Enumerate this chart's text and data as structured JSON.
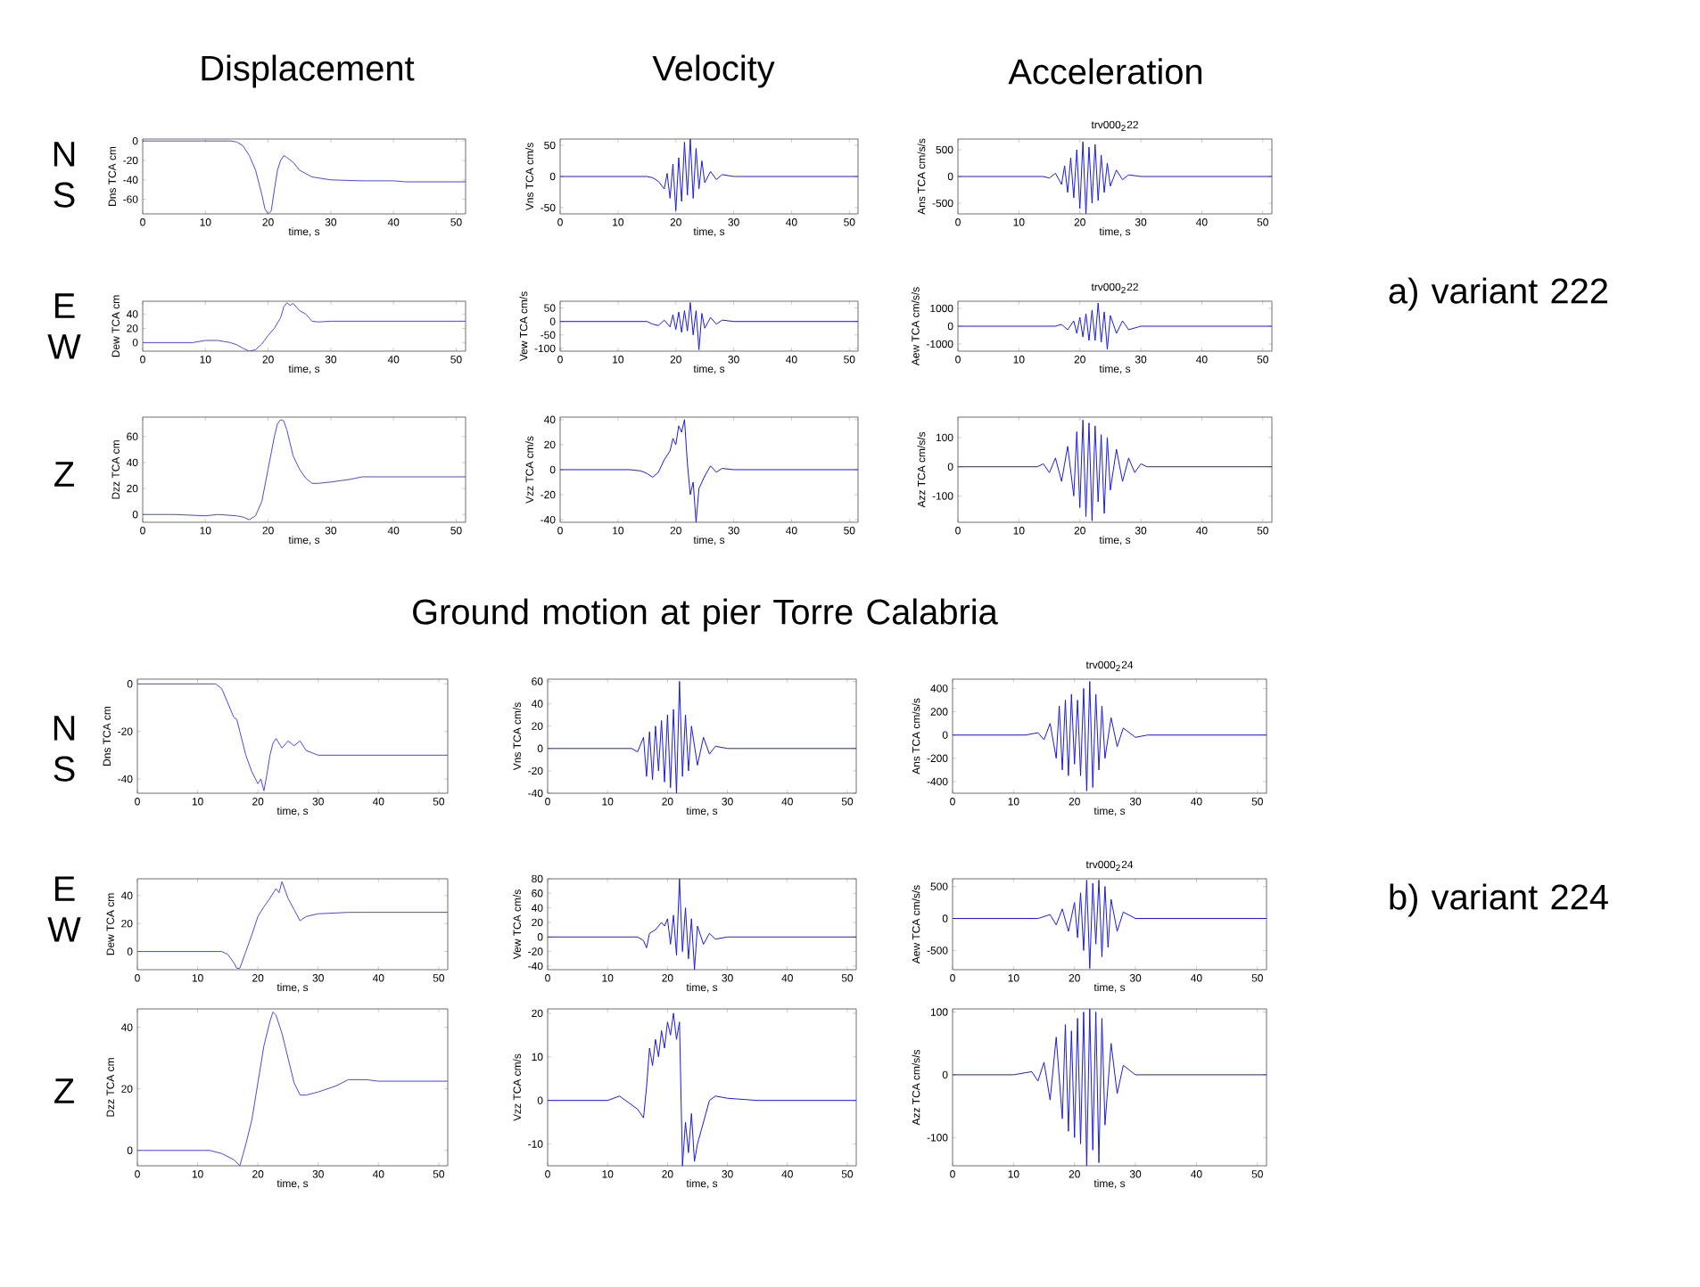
{
  "chart_data": [
    {
      "type": "line",
      "xlabel": "time, s",
      "ylabel": "Dns TCA cm",
      "color": "#4a4ad8",
      "xlim": [
        0,
        51.5
      ],
      "xticks": [
        0,
        10,
        20,
        30,
        40,
        50
      ],
      "ylim": [
        -75,
        2
      ],
      "yticks": [
        -60,
        -40,
        -20,
        0
      ],
      "x": [
        0,
        10,
        14,
        15,
        16,
        17,
        18,
        19,
        19.5,
        20,
        20.5,
        21,
        21.5,
        22,
        22.5,
        23,
        24,
        25,
        27,
        30,
        35,
        40,
        42,
        45,
        50,
        51.5
      ],
      "values": [
        0,
        0,
        0,
        -1,
        -5,
        -15,
        -30,
        -55,
        -70,
        -75,
        -72,
        -50,
        -30,
        -20,
        -15,
        -17,
        -22,
        -30,
        -37,
        -40,
        -41,
        -41,
        -42,
        -42,
        -42,
        -42
      ]
    },
    {
      "type": "line",
      "xlabel": "time, s",
      "ylabel": "Vns TCA cm/s",
      "color": "#1a1ae0",
      "xlim": [
        0,
        51.5
      ],
      "xticks": [
        0,
        10,
        20,
        30,
        40,
        50
      ],
      "ylim": [
        -60,
        60
      ],
      "yticks": [
        -50,
        0,
        50
      ],
      "x": [
        0,
        15,
        16,
        17,
        18,
        18.5,
        19,
        19.5,
        20,
        20.5,
        21,
        21.5,
        22,
        22.5,
        23,
        23.5,
        24,
        24.5,
        25,
        26,
        27,
        28,
        30,
        35,
        51.5
      ],
      "values": [
        0,
        0,
        -2,
        -8,
        -20,
        5,
        -35,
        20,
        -55,
        30,
        -40,
        55,
        -30,
        60,
        -35,
        45,
        -20,
        25,
        -10,
        8,
        -5,
        3,
        0,
        0,
        0
      ]
    },
    {
      "type": "line",
      "title": "trv000$_{2}$22",
      "xlabel": "time, s",
      "ylabel": "Ans TCA cm/s/s",
      "color": "#1a1ae0",
      "xlim": [
        0,
        51.5
      ],
      "xticks": [
        0,
        10,
        20,
        30,
        40,
        50
      ],
      "ylim": [
        -700,
        700
      ],
      "yticks": [
        -500,
        0,
        500
      ],
      "x": [
        0,
        14,
        15,
        16,
        17,
        17.5,
        18,
        18.5,
        19,
        19.5,
        20,
        20.5,
        21,
        21.5,
        22,
        22.5,
        23,
        23.5,
        24,
        24.5,
        25,
        26,
        27,
        28,
        30,
        51.5
      ],
      "values": [
        0,
        0,
        -30,
        60,
        -150,
        200,
        -300,
        350,
        -400,
        500,
        -600,
        650,
        -700,
        550,
        -500,
        600,
        -450,
        400,
        -300,
        250,
        -180,
        120,
        -60,
        30,
        0,
        0
      ]
    },
    {
      "type": "line",
      "xlabel": "time, s",
      "ylabel": "Dew TCA cm",
      "color": "#4a4ad8",
      "xlim": [
        0,
        51.5
      ],
      "xticks": [
        0,
        10,
        20,
        30,
        40,
        50
      ],
      "ylim": [
        -12,
        58
      ],
      "yticks": [
        0,
        20,
        40
      ],
      "x": [
        0,
        8,
        10,
        12,
        14,
        15,
        16,
        17,
        18,
        19,
        20,
        21,
        22,
        22.5,
        23,
        23.5,
        24,
        25,
        26,
        27,
        28,
        30,
        40,
        51.5
      ],
      "values": [
        0,
        0,
        3,
        3,
        0,
        -3,
        -8,
        -12,
        -10,
        -2,
        10,
        20,
        35,
        50,
        56,
        52,
        55,
        45,
        40,
        30,
        29,
        30,
        30,
        30
      ]
    },
    {
      "type": "line",
      "xlabel": "time, s",
      "ylabel": "Vew TCA cm/s",
      "color": "#1a1ae0",
      "xlim": [
        0,
        51.5
      ],
      "xticks": [
        0,
        10,
        20,
        30,
        40,
        50
      ],
      "ylim": [
        -110,
        75
      ],
      "yticks": [
        -100,
        -50,
        0,
        50
      ],
      "x": [
        0,
        15,
        16,
        17,
        18,
        19,
        19.5,
        20,
        20.5,
        21,
        21.5,
        22,
        22.5,
        23,
        23.5,
        24,
        24.5,
        25,
        26,
        27,
        28,
        30,
        51.5
      ],
      "values": [
        0,
        0,
        -10,
        -15,
        5,
        -20,
        25,
        -30,
        35,
        -40,
        40,
        -35,
        70,
        -50,
        40,
        -105,
        30,
        -25,
        15,
        -10,
        5,
        0,
        0
      ]
    },
    {
      "type": "line",
      "title": "trv000$_{2}$22",
      "xlabel": "time, s",
      "ylabel": "Aew TCA cm/s/s",
      "color": "#1a1ae0",
      "xlim": [
        0,
        51.5
      ],
      "xticks": [
        0,
        10,
        20,
        30,
        40,
        50
      ],
      "ylim": [
        -1400,
        1400
      ],
      "yticks": [
        -1000,
        0,
        1000
      ],
      "x": [
        0,
        16,
        17,
        18,
        19,
        19.5,
        20,
        20.5,
        21,
        21.5,
        22,
        22.5,
        23,
        23.5,
        24,
        24.5,
        25,
        26,
        27,
        28,
        30,
        51.5
      ],
      "values": [
        0,
        0,
        100,
        -200,
        300,
        -400,
        500,
        -600,
        700,
        -800,
        900,
        -800,
        1300,
        -900,
        800,
        -1300,
        600,
        -400,
        300,
        -200,
        0,
        0
      ]
    },
    {
      "type": "line",
      "xlabel": "time, s",
      "ylabel": "Dzz TCA cm",
      "color": "#4a4ad8",
      "xlim": [
        0,
        51.5
      ],
      "xticks": [
        0,
        10,
        20,
        30,
        40,
        50
      ],
      "ylim": [
        -6,
        75
      ],
      "yticks": [
        0,
        20,
        40,
        60
      ],
      "x": [
        0,
        5,
        10,
        12,
        15,
        16,
        17,
        18,
        19,
        20,
        21,
        21.5,
        22,
        22.5,
        23,
        24,
        25,
        26,
        27,
        28,
        30,
        33,
        35,
        40,
        51.5
      ],
      "values": [
        0,
        0,
        -1,
        0,
        -1,
        -2,
        -4,
        -1,
        10,
        35,
        60,
        70,
        73,
        72,
        65,
        45,
        35,
        28,
        24,
        24,
        25,
        27,
        29,
        29,
        29
      ]
    },
    {
      "type": "line",
      "xlabel": "time, s",
      "ylabel": "Vzz TCA cm/s",
      "color": "#1a1ae0",
      "xlim": [
        0,
        51.5
      ],
      "xticks": [
        0,
        10,
        20,
        30,
        40,
        50
      ],
      "ylim": [
        -42,
        42
      ],
      "yticks": [
        -40,
        -20,
        0,
        20,
        40
      ],
      "x": [
        0,
        12,
        14,
        15,
        16,
        17,
        18,
        19,
        19.5,
        20,
        20.5,
        21,
        21.5,
        22,
        22.5,
        23,
        23.5,
        24,
        25,
        26,
        27,
        28,
        30,
        51.5
      ],
      "values": [
        0,
        0,
        -1,
        -3,
        -6,
        -2,
        8,
        15,
        25,
        20,
        35,
        30,
        40,
        5,
        -20,
        -10,
        -42,
        -15,
        -5,
        3,
        -2,
        1,
        0,
        0
      ]
    },
    {
      "type": "line",
      "xlabel": "time, s",
      "ylabel": "Azz TCA cm/s/s",
      "color": "#1a1ae0",
      "xlim": [
        0,
        51.5
      ],
      "xticks": [
        0,
        10,
        20,
        30,
        40,
        50
      ],
      "ylim": [
        -190,
        170
      ],
      "yticks": [
        -100,
        0,
        100
      ],
      "x": [
        0,
        13,
        14,
        15,
        16,
        17,
        18,
        19,
        19.5,
        20,
        20.5,
        21,
        21.5,
        22,
        22.5,
        23,
        23.5,
        24,
        24.5,
        25,
        26,
        27,
        28,
        29,
        30,
        31,
        51.5
      ],
      "values": [
        0,
        0,
        10,
        -20,
        30,
        -50,
        70,
        -100,
        120,
        -140,
        160,
        -170,
        150,
        -185,
        140,
        -120,
        110,
        -160,
        100,
        -80,
        60,
        -50,
        30,
        -20,
        10,
        0,
        0
      ]
    },
    {
      "type": "line",
      "xlabel": "time, s",
      "ylabel": "Dns TCA cm",
      "color": "#4a4ad8",
      "xlim": [
        0,
        51.5
      ],
      "xticks": [
        0,
        10,
        20,
        30,
        40,
        50
      ],
      "ylim": [
        -46,
        2
      ],
      "yticks": [
        -40,
        -20,
        0
      ],
      "x": [
        0,
        10,
        13,
        14,
        15,
        16,
        16.5,
        17,
        18,
        19,
        20,
        20.5,
        21,
        21.5,
        22,
        22.5,
        23,
        24,
        25,
        26,
        27,
        28,
        30,
        35,
        40,
        51.5
      ],
      "values": [
        0,
        0,
        0,
        -2,
        -8,
        -14,
        -15,
        -20,
        -30,
        -37,
        -42,
        -40,
        -45,
        -38,
        -30,
        -25,
        -23,
        -27,
        -24,
        -26,
        -24,
        -28,
        -30,
        -30,
        -30,
        -30
      ]
    },
    {
      "type": "line",
      "xlabel": "time, s",
      "ylabel": "Vns TCA cm/s",
      "color": "#1a1ae0",
      "xlim": [
        0,
        51.5
      ],
      "xticks": [
        0,
        10,
        20,
        30,
        40,
        50
      ],
      "ylim": [
        -40,
        62
      ],
      "yticks": [
        -40,
        -20,
        0,
        20,
        40,
        60
      ],
      "x": [
        0,
        14,
        15,
        16,
        16.5,
        17,
        17.5,
        18,
        18.5,
        19,
        19.5,
        20,
        20.5,
        21,
        21.5,
        22,
        22.5,
        23,
        23.5,
        24,
        25,
        26,
        27,
        28,
        30,
        51.5
      ],
      "values": [
        0,
        0,
        -3,
        10,
        -25,
        15,
        -28,
        20,
        -20,
        25,
        -30,
        30,
        -35,
        35,
        -40,
        60,
        -25,
        30,
        -20,
        20,
        -15,
        10,
        -5,
        2,
        0,
        0
      ]
    },
    {
      "type": "line",
      "title": "trv000$_{2}$24",
      "xlabel": "time, s",
      "ylabel": "Ans TCA cm/s/s",
      "color": "#1a1ae0",
      "xlim": [
        0,
        51.5
      ],
      "xticks": [
        0,
        10,
        20,
        30,
        40,
        50
      ],
      "ylim": [
        -500,
        480
      ],
      "yticks": [
        -400,
        -200,
        0,
        200,
        400
      ],
      "x": [
        0,
        12,
        14,
        15,
        16,
        17,
        17.5,
        18,
        18.5,
        19,
        19.5,
        20,
        20.5,
        21,
        21.5,
        22,
        22.5,
        23,
        23.5,
        24,
        24.5,
        25,
        26,
        27,
        28,
        30,
        32,
        51.5
      ],
      "values": [
        0,
        0,
        20,
        -40,
        100,
        -200,
        250,
        -300,
        300,
        -350,
        350,
        -250,
        300,
        -350,
        400,
        -480,
        460,
        -450,
        350,
        -300,
        250,
        -200,
        150,
        -100,
        60,
        -20,
        0,
        0
      ]
    },
    {
      "type": "line",
      "xlabel": "time, s",
      "ylabel": "Dew TCA cm",
      "color": "#4a4ad8",
      "xlim": [
        0,
        51.5
      ],
      "xticks": [
        0,
        10,
        20,
        30,
        40,
        50
      ],
      "ylim": [
        -13,
        52
      ],
      "yticks": [
        0,
        20,
        40
      ],
      "x": [
        0,
        10,
        14,
        15,
        16,
        16.5,
        17,
        18,
        19,
        20,
        21,
        22,
        23,
        23.5,
        24,
        25,
        26,
        27,
        28,
        30,
        35,
        40,
        51.5
      ],
      "values": [
        0,
        0,
        0,
        -2,
        -8,
        -12,
        -12,
        0,
        12,
        25,
        32,
        38,
        45,
        42,
        50,
        38,
        30,
        22,
        25,
        27,
        28,
        28,
        28
      ]
    },
    {
      "type": "line",
      "xlabel": "time, s",
      "ylabel": "Vew TCA cm/s",
      "color": "#1a1ae0",
      "xlim": [
        0,
        51.5
      ],
      "xticks": [
        0,
        10,
        20,
        30,
        40,
        50
      ],
      "ylim": [
        -45,
        80
      ],
      "yticks": [
        -40,
        -20,
        0,
        20,
        40,
        60,
        80
      ],
      "x": [
        0,
        15,
        16,
        16.5,
        17,
        18,
        19,
        19.5,
        20,
        20.5,
        21,
        21.5,
        22,
        22.5,
        23,
        23.5,
        24,
        24.5,
        25,
        26,
        27,
        28,
        30,
        51.5
      ],
      "values": [
        0,
        0,
        -5,
        -15,
        5,
        10,
        20,
        15,
        25,
        -10,
        30,
        -25,
        80,
        -20,
        40,
        -30,
        25,
        -45,
        15,
        -10,
        5,
        -3,
        0,
        0
      ]
    },
    {
      "type": "line",
      "title": "trv000$_{2}$24",
      "xlabel": "time, s",
      "ylabel": "Aew TCA cm/s/s",
      "color": "#1a1ae0",
      "xlim": [
        0,
        51.5
      ],
      "xticks": [
        0,
        10,
        20,
        30,
        40,
        50
      ],
      "ylim": [
        -800,
        620
      ],
      "yticks": [
        -500,
        0,
        500
      ],
      "x": [
        0,
        14,
        16,
        17,
        18,
        19,
        20,
        20.5,
        21,
        21.5,
        22,
        22.5,
        23,
        23.5,
        24,
        24.5,
        25,
        25.5,
        26,
        27,
        28,
        30,
        51.5
      ],
      "values": [
        0,
        0,
        60,
        -100,
        150,
        -200,
        250,
        -300,
        400,
        -500,
        600,
        -780,
        550,
        -400,
        600,
        -600,
        500,
        -450,
        300,
        -200,
        100,
        0,
        0
      ]
    },
    {
      "type": "line",
      "xlabel": "time, s",
      "ylabel": "Dzz TCA cm",
      "color": "#4a4ad8",
      "xlim": [
        0,
        51.5
      ],
      "xticks": [
        0,
        10,
        20,
        30,
        40,
        50
      ],
      "ylim": [
        -5,
        46
      ],
      "yticks": [
        0,
        20,
        40
      ],
      "x": [
        0,
        5,
        10,
        12,
        14,
        16,
        17,
        18,
        19,
        20,
        21,
        22,
        22.5,
        23,
        24,
        25,
        26,
        27,
        28,
        30,
        33,
        35,
        38,
        40,
        51.5
      ],
      "values": [
        0,
        0,
        0,
        0,
        -1,
        -3,
        -5,
        2,
        10,
        22,
        34,
        42,
        45,
        44,
        38,
        30,
        22,
        18,
        18,
        19,
        21,
        23,
        23,
        22.5,
        22.5
      ]
    },
    {
      "type": "line",
      "xlabel": "time, s",
      "ylabel": "Vzz TCA cm/s",
      "color": "#1a1ae0",
      "xlim": [
        0,
        51.5
      ],
      "xticks": [
        0,
        10,
        20,
        30,
        40,
        50
      ],
      "ylim": [
        -15,
        21
      ],
      "yticks": [
        -10,
        0,
        10,
        20
      ],
      "x": [
        0,
        10,
        12,
        14,
        15,
        16,
        16.5,
        17,
        17.5,
        18,
        18.5,
        19,
        19.5,
        20,
        20.5,
        21,
        21.5,
        22,
        22.5,
        23,
        23.5,
        24,
        24.5,
        25,
        26,
        27,
        28,
        30,
        35,
        51.5
      ],
      "values": [
        0,
        0,
        1,
        -1,
        -2,
        -4,
        3,
        12,
        8,
        14,
        10,
        16,
        12,
        18,
        15,
        20,
        14,
        18,
        -15,
        -5,
        -12,
        -3,
        -14,
        -10,
        -5,
        0,
        1,
        0.5,
        0,
        0
      ]
    },
    {
      "type": "line",
      "xlabel": "time, s",
      "ylabel": "Azz TCA cm/s/s",
      "color": "#1a1ae0",
      "xlim": [
        0,
        51.5
      ],
      "xticks": [
        0,
        10,
        20,
        30,
        40,
        50
      ],
      "ylim": [
        -145,
        105
      ],
      "yticks": [
        -100,
        0,
        100
      ],
      "x": [
        0,
        10,
        13,
        14,
        15,
        16,
        17,
        18,
        18.5,
        19,
        19.5,
        20,
        20.5,
        21,
        21.5,
        22,
        22.5,
        23,
        23.5,
        24,
        24.5,
        25,
        26,
        27,
        28,
        30,
        51.5
      ],
      "values": [
        0,
        0,
        5,
        -10,
        20,
        -40,
        60,
        -70,
        80,
        -90,
        70,
        -100,
        90,
        -110,
        100,
        -145,
        105,
        -120,
        100,
        -140,
        90,
        -80,
        50,
        -30,
        15,
        0,
        0
      ]
    },
    {
      "type": "other",
      "annotations": [
        "Displacement",
        "Velocity",
        "Acceleration",
        "N S",
        "E W",
        "Z",
        "a) variant 222",
        "Ground motion at pier Torre Calabria",
        "N S",
        "E W",
        "Z",
        "b) variant 224"
      ]
    }
  ]
}
